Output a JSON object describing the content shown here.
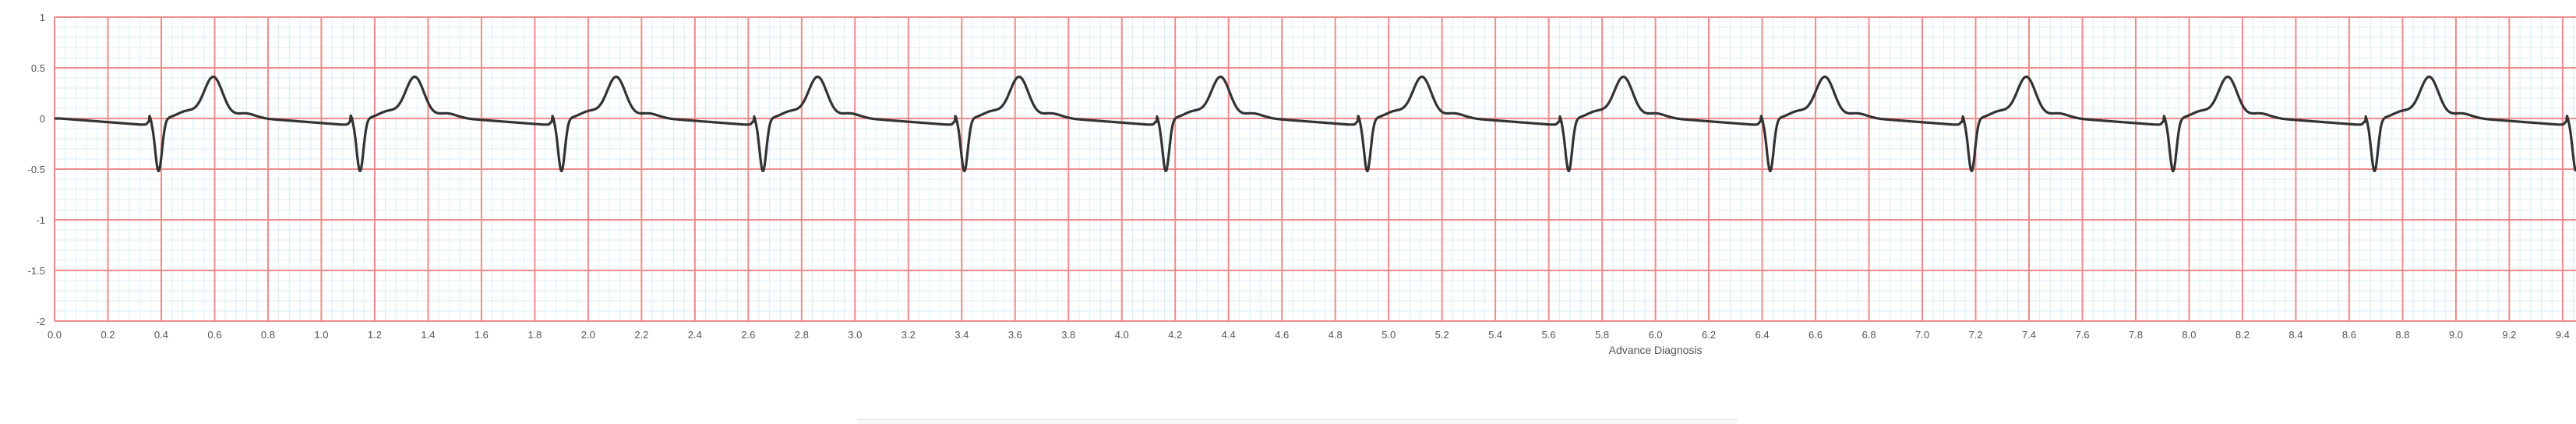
{
  "chart_data": {
    "type": "line",
    "title": "",
    "xlabel": "Advance Diagnosis",
    "ylabel": "",
    "xlim": [
      0,
      9.45
    ],
    "ylim": [
      -2,
      1
    ],
    "x_ticks": [
      "0.0",
      "0.2",
      "0.4",
      "0.6",
      "0.8",
      "1.0",
      "1.2",
      "1.4",
      "1.6",
      "1.8",
      "2.0",
      "2.2",
      "2.4",
      "2.6",
      "2.8",
      "3.0",
      "3.2",
      "3.4",
      "3.6",
      "3.8",
      "4.0",
      "4.2",
      "4.4",
      "4.6",
      "4.8",
      "5.0",
      "5.2",
      "5.4",
      "5.6",
      "5.8",
      "6.0",
      "6.2",
      "6.4",
      "6.6",
      "6.8",
      "7.0",
      "7.2",
      "7.4",
      "7.6",
      "7.8",
      "8.0",
      "8.2",
      "8.4",
      "8.6",
      "8.8",
      "9.0",
      "9.2",
      "9.4"
    ],
    "y_ticks": [
      "1",
      "0.5",
      "0",
      "-0.5",
      "-1",
      "-1.5",
      "-2"
    ],
    "grid": true,
    "colors": {
      "major_grid": "#f08a8a",
      "minor_grid": "#d8eef8",
      "trace": "#333333",
      "axis_text": "#555555"
    },
    "series": [
      {
        "beat_features_per_cycle": {
          "cycle_length_s": 0.755,
          "first_beat_s": 0.355,
          "q_spike": 0.04,
          "s_trough": -0.52,
          "t_peak": 0.41,
          "baseline": -0.06
        },
        "beat_times": [
          0.355,
          1.11,
          1.865,
          2.62,
          3.375,
          4.13,
          4.885,
          5.64,
          6.395,
          7.15,
          7.905,
          8.66,
          9.415
        ]
      }
    ]
  }
}
